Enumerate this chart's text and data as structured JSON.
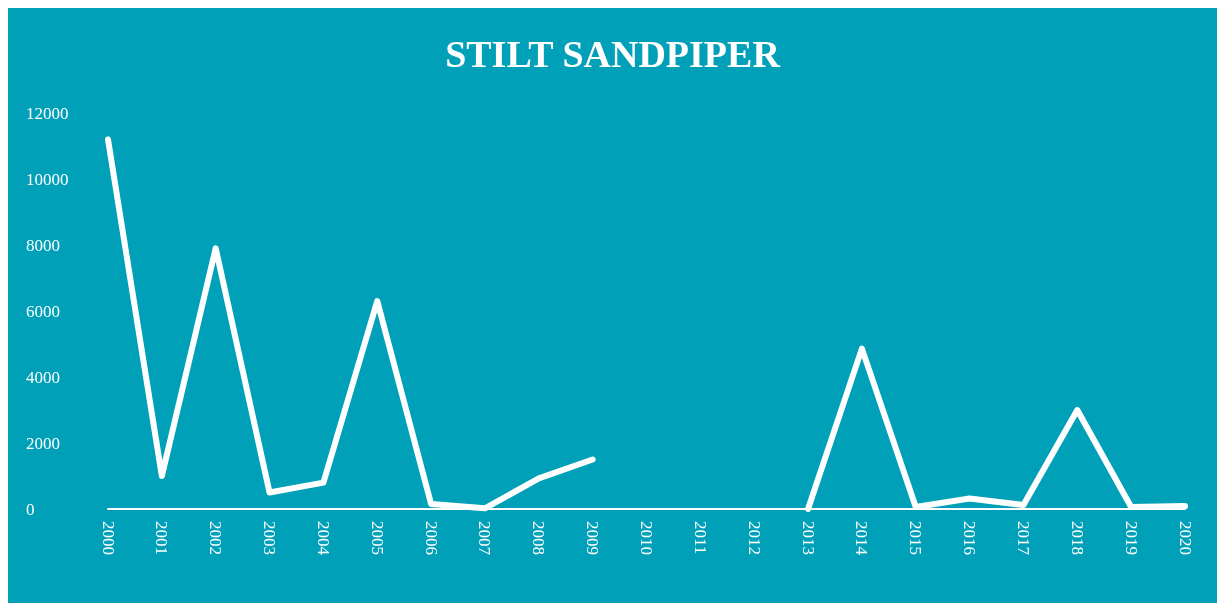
{
  "chart_data": {
    "type": "line",
    "title": "STILT SANDPIPER",
    "categories": [
      "2000",
      "2001",
      "2002",
      "2003",
      "2004",
      "2005",
      "2006",
      "2007",
      "2008",
      "2009",
      "2010",
      "2011",
      "2012",
      "2013",
      "2014",
      "2015",
      "2016",
      "2017",
      "2018",
      "2019",
      "2020"
    ],
    "series": [
      {
        "color": "#ffffff",
        "values": [
          11200,
          1000,
          7900,
          500,
          800,
          6300,
          150,
          20,
          930,
          1500,
          null,
          null,
          null,
          0,
          4860,
          60,
          320,
          120,
          3000,
          60,
          90
        ]
      }
    ],
    "ylim": [
      0,
      12000
    ],
    "yticks": [
      0,
      2000,
      4000,
      6000,
      8000,
      10000,
      12000
    ],
    "grid": false,
    "marker": "none",
    "line_style": "solid"
  }
}
